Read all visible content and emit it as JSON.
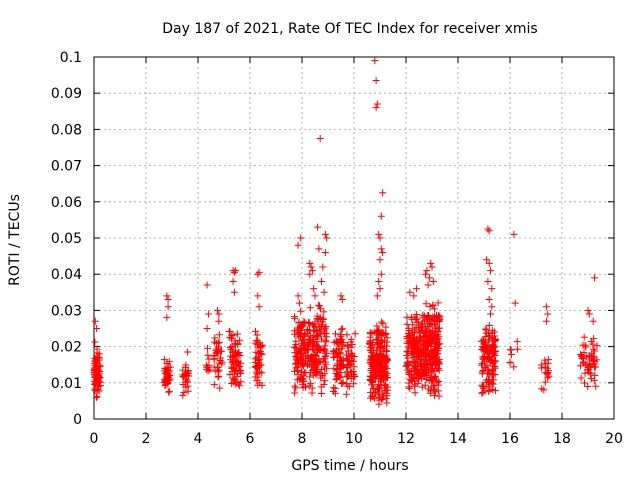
{
  "chart_data": {
    "type": "scatter",
    "title": "Day 187 of 2021, Rate Of TEC Index for receiver xmis",
    "xlabel": "GPS time / hours",
    "ylabel": "ROTI / TECUs",
    "xlim": [
      0,
      20
    ],
    "ylim": [
      0,
      0.1
    ],
    "x_ticks": [
      "0",
      "2",
      "4",
      "6",
      "8",
      "10",
      "12",
      "14",
      "16",
      "18",
      "20"
    ],
    "y_ticks": [
      "0",
      "0.01",
      "0.02",
      "0.03",
      "0.04",
      "0.05",
      "0.06",
      "0.07",
      "0.08",
      "0.09",
      "0.1"
    ],
    "grid": true,
    "legend": "none",
    "marker": "plus",
    "color": "#ff0000",
    "clusters": [
      {
        "x_range": [
          -0.05,
          0.25
        ],
        "y_range": [
          0.005,
          0.022
        ],
        "count": 90
      },
      {
        "x_range": [
          2.7,
          2.95
        ],
        "y_range": [
          0.006,
          0.018
        ],
        "count": 40
      },
      {
        "x_range": [
          3.4,
          3.65
        ],
        "y_range": [
          0.006,
          0.017
        ],
        "count": 25
      },
      {
        "x_range": [
          4.3,
          4.5
        ],
        "y_range": [
          0.01,
          0.02
        ],
        "count": 10
      },
      {
        "x_range": [
          4.6,
          4.95
        ],
        "y_range": [
          0.008,
          0.025
        ],
        "count": 35
      },
      {
        "x_range": [
          5.2,
          5.65
        ],
        "y_range": [
          0.007,
          0.026
        ],
        "count": 70
      },
      {
        "x_range": [
          6.2,
          6.5
        ],
        "y_range": [
          0.007,
          0.025
        ],
        "count": 45
      },
      {
        "x_range": [
          7.7,
          8.15
        ],
        "y_range": [
          0.007,
          0.03
        ],
        "count": 110
      },
      {
        "x_range": [
          8.2,
          8.95
        ],
        "y_range": [
          0.006,
          0.032
        ],
        "count": 160
      },
      {
        "x_range": [
          9.2,
          9.6
        ],
        "y_range": [
          0.006,
          0.027
        ],
        "count": 70
      },
      {
        "x_range": [
          9.7,
          10.05
        ],
        "y_range": [
          0.006,
          0.026
        ],
        "count": 50
      },
      {
        "x_range": [
          10.6,
          11.3
        ],
        "y_range": [
          0.003,
          0.028
        ],
        "count": 230
      },
      {
        "x_range": [
          12.0,
          12.7
        ],
        "y_range": [
          0.007,
          0.03
        ],
        "count": 190
      },
      {
        "x_range": [
          12.7,
          13.3
        ],
        "y_range": [
          0.005,
          0.035
        ],
        "count": 230
      },
      {
        "x_range": [
          14.9,
          15.45
        ],
        "y_range": [
          0.006,
          0.026
        ],
        "count": 130
      },
      {
        "x_range": [
          16.0,
          16.3
        ],
        "y_range": [
          0.009,
          0.024
        ],
        "count": 8
      },
      {
        "x_range": [
          17.2,
          17.5
        ],
        "y_range": [
          0.007,
          0.018
        ],
        "count": 18
      },
      {
        "x_range": [
          18.7,
          19.35
        ],
        "y_range": [
          0.008,
          0.024
        ],
        "count": 55
      }
    ],
    "points": [
      {
        "x": 0.05,
        "y": 0.027
      },
      {
        "x": 0.1,
        "y": 0.025
      },
      {
        "x": 2.8,
        "y": 0.034
      },
      {
        "x": 2.85,
        "y": 0.033
      },
      {
        "x": 2.8,
        "y": 0.028
      },
      {
        "x": 2.85,
        "y": 0.031
      },
      {
        "x": 3.6,
        "y": 0.0185
      },
      {
        "x": 4.35,
        "y": 0.037
      },
      {
        "x": 4.4,
        "y": 0.029
      },
      {
        "x": 4.35,
        "y": 0.025
      },
      {
        "x": 4.75,
        "y": 0.03
      },
      {
        "x": 4.8,
        "y": 0.029
      },
      {
        "x": 4.8,
        "y": 0.027
      },
      {
        "x": 5.35,
        "y": 0.041
      },
      {
        "x": 5.4,
        "y": 0.0405
      },
      {
        "x": 5.45,
        "y": 0.041
      },
      {
        "x": 5.35,
        "y": 0.038
      },
      {
        "x": 5.4,
        "y": 0.035
      },
      {
        "x": 6.3,
        "y": 0.04
      },
      {
        "x": 6.35,
        "y": 0.0405
      },
      {
        "x": 6.3,
        "y": 0.034
      },
      {
        "x": 6.35,
        "y": 0.031
      },
      {
        "x": 7.85,
        "y": 0.034
      },
      {
        "x": 7.9,
        "y": 0.032
      },
      {
        "x": 7.85,
        "y": 0.048
      },
      {
        "x": 7.95,
        "y": 0.05
      },
      {
        "x": 8.3,
        "y": 0.043
      },
      {
        "x": 8.35,
        "y": 0.042
      },
      {
        "x": 8.3,
        "y": 0.04
      },
      {
        "x": 8.4,
        "y": 0.041
      },
      {
        "x": 8.45,
        "y": 0.036
      },
      {
        "x": 8.5,
        "y": 0.034
      },
      {
        "x": 8.6,
        "y": 0.053
      },
      {
        "x": 8.65,
        "y": 0.047
      },
      {
        "x": 8.9,
        "y": 0.051
      },
      {
        "x": 8.95,
        "y": 0.05
      },
      {
        "x": 8.9,
        "y": 0.046
      },
      {
        "x": 8.75,
        "y": 0.038
      },
      {
        "x": 8.8,
        "y": 0.042
      },
      {
        "x": 8.7,
        "y": 0.0775
      },
      {
        "x": 8.85,
        "y": 0.035
      },
      {
        "x": 9.5,
        "y": 0.034
      },
      {
        "x": 9.55,
        "y": 0.033
      },
      {
        "x": 10.8,
        "y": 0.099
      },
      {
        "x": 10.85,
        "y": 0.0935
      },
      {
        "x": 10.9,
        "y": 0.087
      },
      {
        "x": 10.85,
        "y": 0.086
      },
      {
        "x": 11.1,
        "y": 0.0625
      },
      {
        "x": 11.05,
        "y": 0.056
      },
      {
        "x": 10.95,
        "y": 0.051
      },
      {
        "x": 11.0,
        "y": 0.05
      },
      {
        "x": 11.05,
        "y": 0.047
      },
      {
        "x": 11.1,
        "y": 0.046
      },
      {
        "x": 11.0,
        "y": 0.044
      },
      {
        "x": 11.05,
        "y": 0.04
      },
      {
        "x": 10.95,
        "y": 0.038
      },
      {
        "x": 11.0,
        "y": 0.036
      },
      {
        "x": 10.9,
        "y": 0.034
      },
      {
        "x": 12.15,
        "y": 0.035
      },
      {
        "x": 12.4,
        "y": 0.036
      },
      {
        "x": 12.3,
        "y": 0.034
      },
      {
        "x": 12.75,
        "y": 0.04
      },
      {
        "x": 12.8,
        "y": 0.041
      },
      {
        "x": 12.95,
        "y": 0.043
      },
      {
        "x": 13.0,
        "y": 0.042
      },
      {
        "x": 12.9,
        "y": 0.039
      },
      {
        "x": 13.05,
        "y": 0.038
      },
      {
        "x": 12.85,
        "y": 0.037
      },
      {
        "x": 15.15,
        "y": 0.0525
      },
      {
        "x": 15.2,
        "y": 0.052
      },
      {
        "x": 15.1,
        "y": 0.044
      },
      {
        "x": 15.2,
        "y": 0.043
      },
      {
        "x": 15.25,
        "y": 0.041
      },
      {
        "x": 15.15,
        "y": 0.038
      },
      {
        "x": 15.3,
        "y": 0.036
      },
      {
        "x": 15.2,
        "y": 0.033
      },
      {
        "x": 15.3,
        "y": 0.031
      },
      {
        "x": 15.25,
        "y": 0.029
      },
      {
        "x": 16.15,
        "y": 0.051
      },
      {
        "x": 16.2,
        "y": 0.032
      },
      {
        "x": 17.4,
        "y": 0.031
      },
      {
        "x": 17.45,
        "y": 0.029
      },
      {
        "x": 17.4,
        "y": 0.027
      },
      {
        "x": 19.25,
        "y": 0.039
      },
      {
        "x": 19.0,
        "y": 0.03
      },
      {
        "x": 19.05,
        "y": 0.029
      },
      {
        "x": 19.2,
        "y": 0.027
      }
    ]
  }
}
